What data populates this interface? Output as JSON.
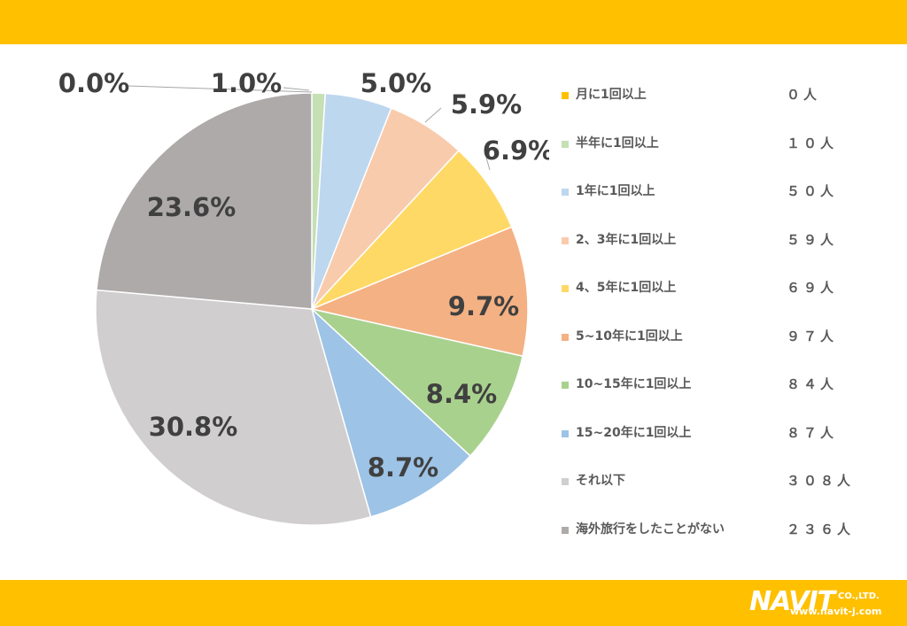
{
  "chart_data": {
    "type": "pie",
    "legend_position": "right",
    "slices": [
      {
        "label": "月に1回以上",
        "count": "０人",
        "percent_label": "0.0%",
        "value": 0.0,
        "color": "#FFC000"
      },
      {
        "label": "半年に1回以上",
        "count": "１０人",
        "percent_label": "1.0%",
        "value": 1.0,
        "color": "#C5E0B4"
      },
      {
        "label": "1年に1回以上",
        "count": "５０人",
        "percent_label": "5.0%",
        "value": 5.0,
        "color": "#BDD7EE"
      },
      {
        "label": "2、3年に1回以上",
        "count": "５９人",
        "percent_label": "5.9%",
        "value": 5.9,
        "color": "#F8CBAD"
      },
      {
        "label": "4、5年に1回以上",
        "count": "６９人",
        "percent_label": "6.9%",
        "value": 6.9,
        "color": "#FFD966"
      },
      {
        "label": "5~10年に1回以上",
        "count": "９７人",
        "percent_label": "9.7%",
        "value": 9.7,
        "color": "#F4B183"
      },
      {
        "label": "10~15年に1回以上",
        "count": "８４人",
        "percent_label": "8.4%",
        "value": 8.4,
        "color": "#A9D18E"
      },
      {
        "label": "15~20年に1回以上",
        "count": "８７人",
        "percent_label": "8.7%",
        "value": 8.7,
        "color": "#9DC3E6"
      },
      {
        "label": "それ以下",
        "count": "３０８人",
        "percent_label": "30.8%",
        "value": 30.8,
        "color": "#D0CECE"
      },
      {
        "label": "海外旅行をしたことがない",
        "count": "２３６人",
        "percent_label": "23.6%",
        "value": 23.6,
        "color": "#AEAAAA"
      }
    ]
  },
  "branding": {
    "logo_text": "NAVIT",
    "logo_suffix": "CO.,LTD.",
    "url": "www.navit-j.com"
  },
  "colors": {
    "band": "#FFC000",
    "text": "#404040"
  }
}
